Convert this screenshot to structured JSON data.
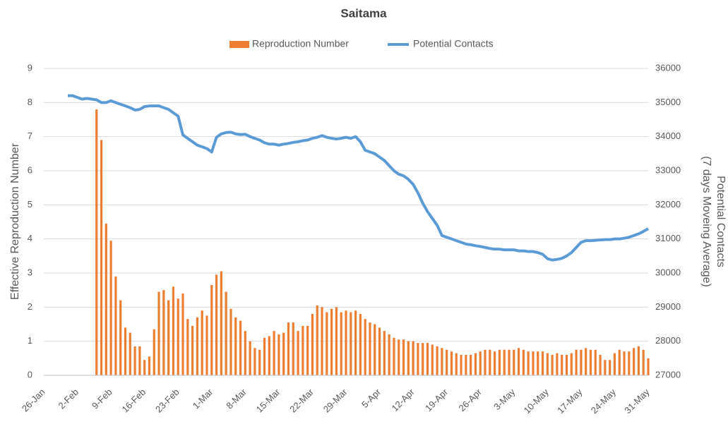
{
  "chart_data": {
    "type": "bar_line",
    "title": "Saitama",
    "ylabel": "Effective Reproduction Number",
    "y2label": [
      "Potential Contacts",
      "(7 days Moveing Average)"
    ],
    "categories": [
      "26-Jan",
      null,
      null,
      null,
      null,
      null,
      null,
      "2-Feb",
      null,
      null,
      null,
      null,
      null,
      null,
      "9-Feb",
      null,
      null,
      null,
      null,
      null,
      null,
      "16-Feb",
      null,
      null,
      null,
      null,
      null,
      null,
      "23-Feb",
      null,
      null,
      null,
      null,
      null,
      null,
      "1-Mar",
      null,
      null,
      null,
      null,
      null,
      null,
      "8-Mar",
      null,
      null,
      null,
      null,
      null,
      null,
      "15-Mar",
      null,
      null,
      null,
      null,
      null,
      null,
      "22-Mar",
      null,
      null,
      null,
      null,
      null,
      null,
      "29-Mar",
      null,
      null,
      null,
      null,
      null,
      null,
      "5-Apr",
      null,
      null,
      null,
      null,
      null,
      null,
      "12-Apr",
      null,
      null,
      null,
      null,
      null,
      null,
      "19-Apr",
      null,
      null,
      null,
      null,
      null,
      null,
      "26-Apr",
      null,
      null,
      null,
      null,
      null,
      null,
      "3-May",
      null,
      null,
      null,
      null,
      null,
      null,
      "10-May",
      null,
      null,
      null,
      null,
      null,
      null,
      "17-May",
      null,
      null,
      null,
      null,
      null,
      null,
      "24-May",
      null,
      null,
      null,
      null,
      null,
      null,
      "31-May"
    ],
    "series": [
      {
        "name": "Reproduction Number",
        "type": "bar",
        "color": "#ed7d31",
        "values": [
          null,
          null,
          null,
          null,
          null,
          null,
          null,
          null,
          null,
          null,
          null,
          7.8,
          6.9,
          4.45,
          3.95,
          2.9,
          2.2,
          1.4,
          1.25,
          0.85,
          0.85,
          0.45,
          0.55,
          1.35,
          2.45,
          2.5,
          2.2,
          2.6,
          2.25,
          2.4,
          1.65,
          1.45,
          1.7,
          1.9,
          1.75,
          2.65,
          2.95,
          3.05,
          2.45,
          1.95,
          1.7,
          1.6,
          1.3,
          1.0,
          0.8,
          0.75,
          1.1,
          1.15,
          1.3,
          1.2,
          1.25,
          1.55,
          1.55,
          1.3,
          1.45,
          1.45,
          1.8,
          2.05,
          2.0,
          1.85,
          1.95,
          2.0,
          1.85,
          1.9,
          1.85,
          1.9,
          1.8,
          1.65,
          1.55,
          1.5,
          1.4,
          1.3,
          1.2,
          1.1,
          1.05,
          1.05,
          1.0,
          1.0,
          0.95,
          0.95,
          0.95,
          0.9,
          0.85,
          0.8,
          0.75,
          0.7,
          0.65,
          0.6,
          0.6,
          0.6,
          0.65,
          0.7,
          0.75,
          0.75,
          0.7,
          0.75,
          0.75,
          0.75,
          0.75,
          0.8,
          0.75,
          0.7,
          0.7,
          0.7,
          0.7,
          0.65,
          0.6,
          0.65,
          0.6,
          0.6,
          0.65,
          0.75,
          0.75,
          0.8,
          0.75,
          0.75,
          0.6,
          0.45,
          0.45,
          0.65,
          0.75,
          0.7,
          0.7,
          0.8,
          0.85,
          0.75,
          0.5
        ]
      },
      {
        "name": "Potential Contacts",
        "type": "line",
        "axis": "y2",
        "color": "#5b9bd5",
        "values": [
          null,
          null,
          null,
          null,
          null,
          35200,
          35200,
          35150,
          35100,
          35120,
          35100,
          35080,
          35000,
          35000,
          35050,
          35000,
          34950,
          34900,
          34850,
          34780,
          34800,
          34880,
          34900,
          34900,
          34900,
          34850,
          34800,
          34700,
          34600,
          34050,
          33950,
          33850,
          33750,
          33700,
          33650,
          33550,
          33980,
          34080,
          34120,
          34130,
          34080,
          34060,
          34070,
          34000,
          33950,
          33900,
          33820,
          33780,
          33780,
          33750,
          33780,
          33800,
          33830,
          33850,
          33880,
          33900,
          33950,
          33980,
          34030,
          33980,
          33950,
          33930,
          33950,
          33980,
          33950,
          34000,
          33850,
          33600,
          33550,
          33500,
          33400,
          33300,
          33150,
          33000,
          32900,
          32850,
          32750,
          32600,
          32350,
          32050,
          31800,
          31600,
          31400,
          31100,
          31050,
          31000,
          30950,
          30900,
          30850,
          30830,
          30800,
          30780,
          30750,
          30720,
          30700,
          30700,
          30680,
          30680,
          30680,
          30650,
          30650,
          30630,
          30630,
          30600,
          30550,
          30420,
          30380,
          30400,
          30430,
          30500,
          30600,
          30750,
          30900,
          30950,
          30950,
          30960,
          30970,
          30980,
          30980,
          31000,
          31000,
          31020,
          31050,
          31100,
          31150,
          31220,
          31300
        ]
      }
    ],
    "ylim": [
      0,
      9
    ],
    "yticks": [
      0,
      1,
      2,
      3,
      4,
      5,
      6,
      7,
      8,
      9
    ],
    "y2lim": [
      27000,
      36000
    ],
    "y2ticks": [
      27000,
      28000,
      29000,
      30000,
      31000,
      32000,
      33000,
      34000,
      35000,
      36000
    ],
    "grid": true,
    "legend": "top"
  }
}
